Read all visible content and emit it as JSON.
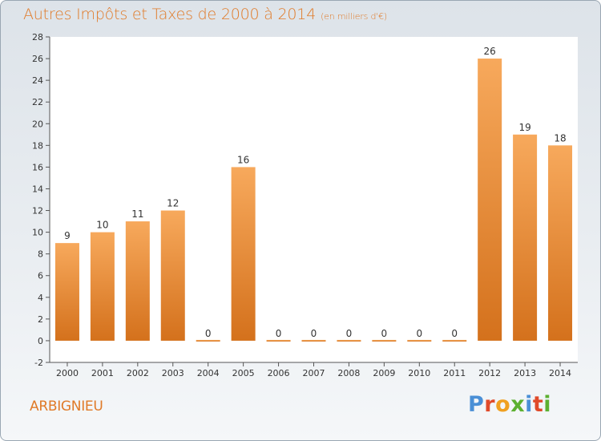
{
  "header": {
    "title": "Autres Impôts et Taxes de 2000 à 2014",
    "unit": "(en milliers d'€)"
  },
  "footer": {
    "commune": "ARBIGNIEU",
    "logo": "Proxiti"
  },
  "colors": {
    "title": "#e07a28",
    "bar_top": "#f7a95c",
    "bar_bottom": "#d4711c",
    "logo_letters": [
      "#4a8fd6",
      "#e04a2a",
      "#f0a020",
      "#5cb030",
      "#4a8fd6",
      "#e04a2a",
      "#5cb030"
    ]
  },
  "chart_data": {
    "type": "bar",
    "title": "Autres Impôts et Taxes de 2000 à 2014",
    "subtitle": "(en milliers d'€)",
    "xlabel": "",
    "ylabel": "",
    "categories": [
      "2000",
      "2001",
      "2002",
      "2003",
      "2004",
      "2005",
      "2006",
      "2007",
      "2008",
      "2009",
      "2010",
      "2011",
      "2012",
      "2013",
      "2014"
    ],
    "values": [
      9,
      10,
      11,
      12,
      0,
      16,
      0,
      0,
      0,
      0,
      0,
      0,
      26,
      19,
      18
    ],
    "ylim": [
      -2,
      28
    ],
    "yticks": [
      -2,
      0,
      2,
      4,
      6,
      8,
      10,
      12,
      14,
      16,
      18,
      20,
      22,
      24,
      26,
      28
    ],
    "grid": false,
    "legend": "none"
  }
}
